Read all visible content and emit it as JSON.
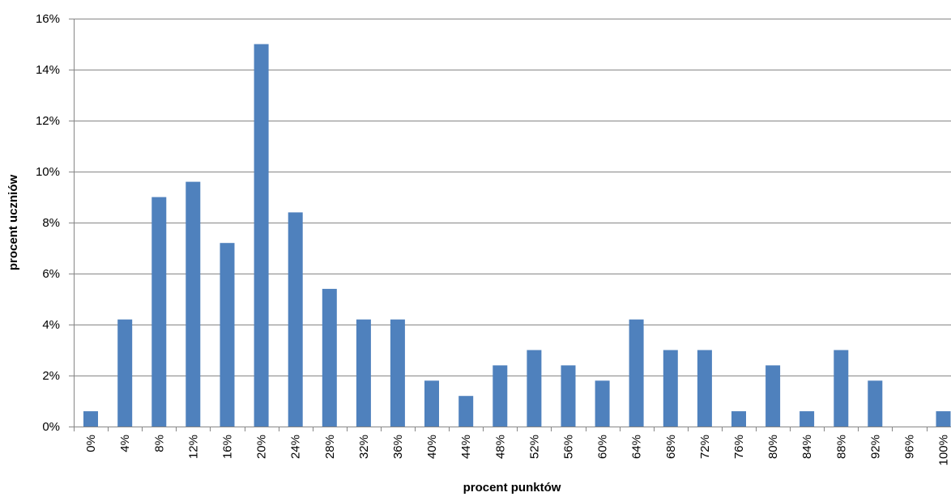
{
  "chart_data": {
    "type": "bar",
    "title": "",
    "xlabel": "procent  punktów",
    "ylabel": "procent  uczniów",
    "categories": [
      "0%",
      "4%",
      "8%",
      "12%",
      "16%",
      "20%",
      "24%",
      "28%",
      "32%",
      "36%",
      "40%",
      "44%",
      "48%",
      "52%",
      "56%",
      "60%",
      "64%",
      "68%",
      "72%",
      "76%",
      "80%",
      "84%",
      "88%",
      "92%",
      "96%",
      "100%"
    ],
    "values": [
      0.6,
      4.2,
      9.0,
      9.6,
      7.2,
      15.0,
      8.4,
      5.4,
      4.2,
      4.2,
      1.8,
      1.2,
      2.4,
      3.0,
      2.4,
      1.8,
      4.2,
      3.0,
      3.0,
      0.6,
      2.4,
      0.6,
      3.0,
      1.8,
      0.0,
      0.6
    ],
    "value_unit": "%",
    "ylim": [
      0,
      16
    ],
    "yticks": [
      0,
      2,
      4,
      6,
      8,
      10,
      12,
      14,
      16
    ],
    "ytick_labels": [
      "0%",
      "2%",
      "4%",
      "6%",
      "8%",
      "10%",
      "12%",
      "14%",
      "16%"
    ],
    "grid": true,
    "legend": "none",
    "bar_color": "#4F81BD"
  }
}
